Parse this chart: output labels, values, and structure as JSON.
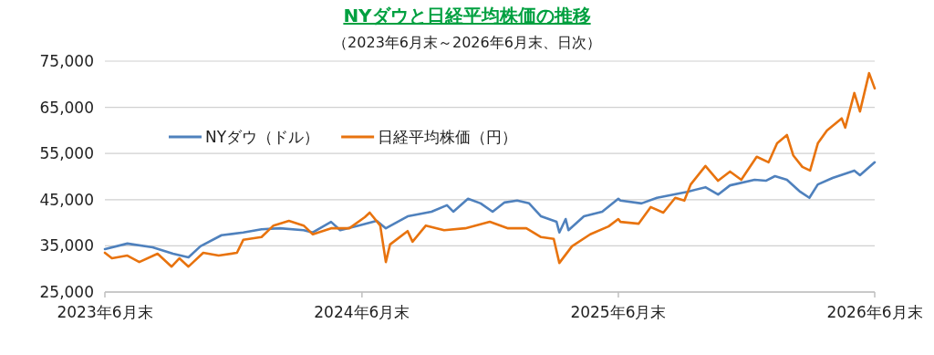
{
  "chart_data": {
    "type": "line",
    "title": "NYダウと日経平均株価の推移",
    "subtitle": "（2023年6月末～2026年6月末、日次）",
    "xlim": [
      "2023-06-30",
      "2026-06-30"
    ],
    "xticks": [
      {
        "value": "2023-06-30",
        "label": "2023年6月末"
      },
      {
        "value": "2024-06-30",
        "label": "2024年6月末"
      },
      {
        "value": "2025-06-30",
        "label": "2025年6月末"
      },
      {
        "value": "2026-06-30",
        "label": "2026年6月末"
      }
    ],
    "ylim": [
      25000,
      75000
    ],
    "yticks": [
      {
        "value": 25000,
        "label": "25,000"
      },
      {
        "value": 35000,
        "label": "35,000"
      },
      {
        "value": 45000,
        "label": "45,000"
      },
      {
        "value": 55000,
        "label": "55,000"
      },
      {
        "value": 65000,
        "label": "65,000"
      },
      {
        "value": 75000,
        "label": "75,000"
      }
    ],
    "grid": "y",
    "legend": "top left",
    "series": [
      {
        "name": "NYダウ（ドル）",
        "color": "#4f81bd",
        "x": [
          "2023-06-30",
          "2023-08-01",
          "2023-09-06",
          "2023-10-05",
          "2023-10-27",
          "2023-11-13",
          "2023-12-13",
          "2024-01-13",
          "2024-02-08",
          "2024-03-05",
          "2024-04-08",
          "2024-04-21",
          "2024-05-17",
          "2024-05-30",
          "2024-06-25",
          "2024-07-21",
          "2024-08-03",
          "2024-09-03",
          "2024-10-07",
          "2024-10-29",
          "2024-11-07",
          "2024-11-28",
          "2024-12-16",
          "2025-01-02",
          "2025-01-19",
          "2025-02-06",
          "2025-02-23",
          "2025-03-12",
          "2025-04-03",
          "2025-04-07",
          "2025-04-16",
          "2025-04-20",
          "2025-05-12",
          "2025-06-07",
          "2025-06-30",
          "2025-07-03",
          "2025-08-02",
          "2025-08-24",
          "2025-10-06",
          "2025-11-01",
          "2025-11-19",
          "2025-12-06",
          "2026-01-10",
          "2026-01-26",
          "2026-02-08",
          "2026-02-25",
          "2026-03-16",
          "2026-03-29",
          "2026-04-10",
          "2026-05-01",
          "2026-06-01",
          "2026-06-09",
          "2026-06-30"
        ],
        "values": [
          34300,
          35500,
          34700,
          33300,
          32500,
          34900,
          37300,
          37900,
          38600,
          38800,
          38400,
          37900,
          40200,
          38400,
          39400,
          40400,
          38800,
          41400,
          42400,
          43800,
          42400,
          45200,
          44200,
          42400,
          44400,
          44800,
          44200,
          41400,
          40200,
          37900,
          40800,
          38400,
          41400,
          42400,
          45200,
          44800,
          44200,
          45400,
          46700,
          47700,
          46100,
          48100,
          49300,
          49100,
          50100,
          49300,
          46700,
          45400,
          48300,
          49700,
          51300,
          50300,
          53100
        ]
      },
      {
        "name": "日経平均株価（円）",
        "color": "#e8730e",
        "x": [
          "2023-06-30",
          "2023-07-10",
          "2023-08-01",
          "2023-08-18",
          "2023-09-13",
          "2023-10-03",
          "2023-10-14",
          "2023-10-27",
          "2023-11-17",
          "2023-12-09",
          "2024-01-04",
          "2024-01-13",
          "2024-02-08",
          "2024-02-25",
          "2024-03-18",
          "2024-04-08",
          "2024-04-21",
          "2024-05-17",
          "2024-06-12",
          "2024-07-04",
          "2024-07-11",
          "2024-07-26",
          "2024-08-03",
          "2024-08-09",
          "2024-09-03",
          "2024-09-10",
          "2024-09-29",
          "2024-10-25",
          "2024-11-24",
          "2024-12-29",
          "2025-01-24",
          "2025-02-19",
          "2025-03-12",
          "2025-03-30",
          "2025-04-07",
          "2025-04-25",
          "2025-05-21",
          "2025-06-16",
          "2025-06-30",
          "2025-07-03",
          "2025-07-29",
          "2025-08-15",
          "2025-09-02",
          "2025-09-19",
          "2025-10-02",
          "2025-10-11",
          "2025-11-01",
          "2025-11-19",
          "2025-12-06",
          "2025-12-22",
          "2026-01-13",
          "2026-01-30",
          "2026-02-11",
          "2026-02-25",
          "2026-03-06",
          "2026-03-19",
          "2026-03-30",
          "2026-04-10",
          "2026-04-23",
          "2026-05-14",
          "2026-05-19",
          "2026-06-01",
          "2026-06-09",
          "2026-06-22",
          "2026-06-30"
        ],
        "values": [
          33500,
          32300,
          32900,
          31500,
          33300,
          30500,
          32300,
          30500,
          33500,
          32900,
          33500,
          36300,
          36900,
          39400,
          40400,
          39400,
          37500,
          38800,
          38800,
          41200,
          42200,
          39400,
          31500,
          35300,
          38200,
          35900,
          39400,
          38400,
          38800,
          40200,
          38800,
          38800,
          36900,
          36500,
          31300,
          34900,
          37500,
          39200,
          40800,
          40200,
          39800,
          43400,
          42200,
          45400,
          44800,
          48300,
          52300,
          49100,
          51100,
          49300,
          54300,
          53100,
          57200,
          59000,
          54600,
          52100,
          51300,
          57200,
          60000,
          62600,
          60600,
          68100,
          64100,
          72400,
          69100
        ]
      }
    ]
  }
}
